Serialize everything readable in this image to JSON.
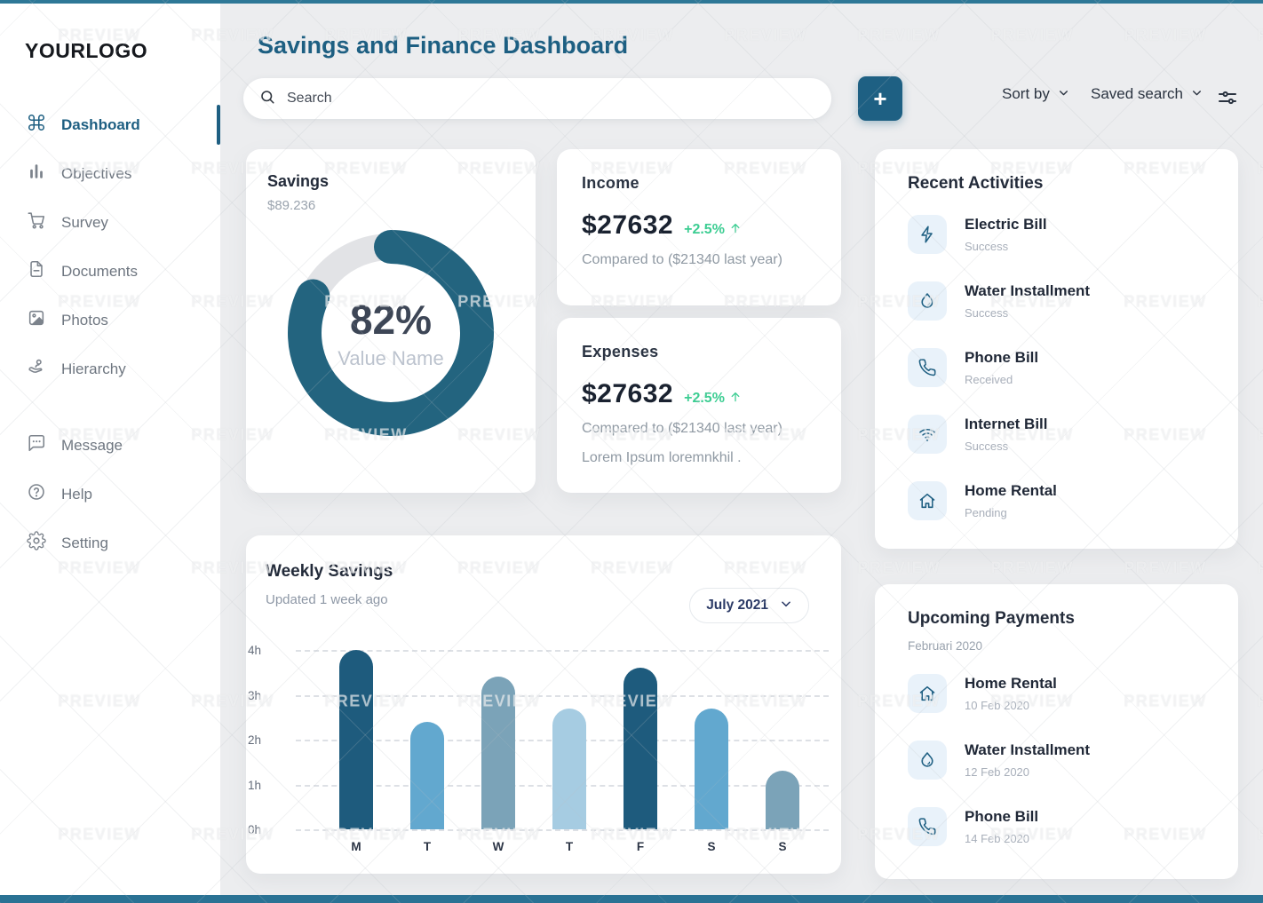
{
  "watermark": {
    "text": "PREVIEW"
  },
  "colors": {
    "accent": "#1E5F82",
    "topline": "#2E7897",
    "green": "#3CCD92",
    "icon_tile_bg": "#E9F2FA"
  },
  "sidebar": {
    "logo": "YOURLOGO",
    "items": [
      {
        "label": "Dashboard",
        "icon": "command",
        "active": true
      },
      {
        "label": "Objectives",
        "icon": "bar-chart"
      },
      {
        "label": "Survey",
        "icon": "cart"
      },
      {
        "label": "Documents",
        "icon": "document"
      },
      {
        "label": "Photos",
        "icon": "photo"
      },
      {
        "label": "Hierarchy",
        "icon": "hierarchy"
      }
    ],
    "items_secondary": [
      {
        "label": "Message",
        "icon": "message"
      },
      {
        "label": "Help",
        "icon": "help"
      },
      {
        "label": "Setting",
        "icon": "gear"
      }
    ]
  },
  "header": {
    "title": "Savings and Finance Dashboard",
    "search_placeholder": "Search",
    "add_button": "+",
    "sort_by": "Sort by",
    "saved_search": "Saved search"
  },
  "savings_card": {
    "title": "Savings",
    "amount": "$89.236",
    "percent": "82%",
    "percent_value": 82,
    "value_label": "Value Name",
    "arc_color": "#23647F",
    "track_color": "#E2E3E6"
  },
  "income_card": {
    "title": "Income",
    "amount": "$27632",
    "change": "+2.5%",
    "compare": "Compared to ($21340 last year)"
  },
  "expenses_card": {
    "title": "Expenses",
    "amount": "$27632",
    "change": "+2.5%",
    "compare": "Compared to ($21340 last year)",
    "note": "Lorem Ipsum loremnkhil ."
  },
  "weekly_card": {
    "title": "Weekly Savings",
    "subtitle": "Updated 1 week ago",
    "period": "July 2021"
  },
  "chart_data": {
    "type": "bar",
    "title": "Weekly Savings",
    "categories": [
      "M",
      "T",
      "W",
      "T",
      "F",
      "S",
      "S"
    ],
    "values": [
      4.0,
      2.4,
      3.4,
      2.7,
      3.6,
      2.7,
      1.3
    ],
    "bar_colors": [
      "#1E5B7D",
      "#62A8CF",
      "#7BA3B8",
      "#A6CCE2",
      "#1E5B7D",
      "#62A8CF",
      "#7BA3B8"
    ],
    "ylabel_ticks": [
      "4h",
      "3h",
      "2h",
      "1h",
      "0h"
    ],
    "ylim": [
      0,
      4
    ],
    "xlabel": "",
    "ylabel": "",
    "grid": "horizontal-dashed",
    "legend": "none"
  },
  "recent_activities": {
    "title": "Recent Activities",
    "items": [
      {
        "name": "Electric Bill",
        "status": "Success",
        "icon": "bolt"
      },
      {
        "name": "Water Installment",
        "status": "Success",
        "icon": "drop"
      },
      {
        "name": "Phone Bill",
        "status": "Received",
        "icon": "phone"
      },
      {
        "name": "Internet Bill",
        "status": "Success",
        "icon": "wifi"
      },
      {
        "name": "Home Rental",
        "status": "Pending",
        "icon": "home"
      }
    ]
  },
  "upcoming_payments": {
    "title": "Upcoming Payments",
    "subtitle": "Februari 2020",
    "items": [
      {
        "name": "Home Rental",
        "status": "10 Feb 2020",
        "icon": "home"
      },
      {
        "name": "Water Installment",
        "status": "12 Feb 2020",
        "icon": "drop"
      },
      {
        "name": "Phone Bill",
        "status": "14 Feb 2020",
        "icon": "phone"
      }
    ]
  }
}
